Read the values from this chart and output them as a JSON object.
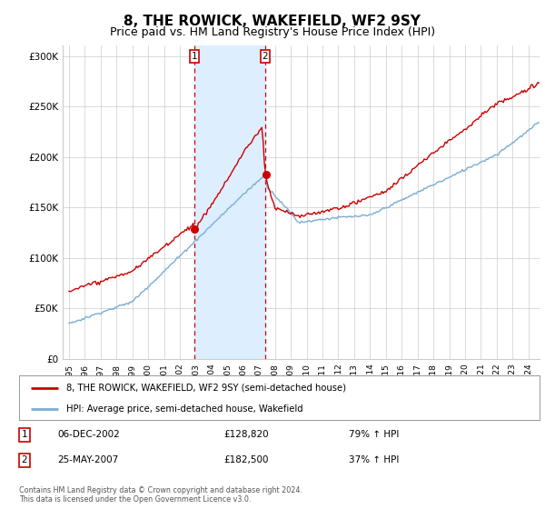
{
  "title": "8, THE ROWICK, WAKEFIELD, WF2 9SY",
  "subtitle": "Price paid vs. HM Land Registry's House Price Index (HPI)",
  "title_fontsize": 11,
  "subtitle_fontsize": 9,
  "ylabel_ticks": [
    "£0",
    "£50K",
    "£100K",
    "£150K",
    "£200K",
    "£250K",
    "£300K"
  ],
  "ytick_values": [
    0,
    50000,
    100000,
    150000,
    200000,
    250000,
    300000
  ],
  "ylim": [
    0,
    310000
  ],
  "sale1_date_num": 2002.92,
  "sale1_price": 128820,
  "sale2_date_num": 2007.38,
  "sale2_price": 182500,
  "sale1_label": "06-DEC-2002",
  "sale1_amount": "£128,820",
  "sale1_hpi": "79% ↑ HPI",
  "sale2_label": "25-MAY-2007",
  "sale2_amount": "£182,500",
  "sale2_hpi": "37% ↑ HPI",
  "legend_line1": "8, THE ROWICK, WAKEFIELD, WF2 9SY (semi-detached house)",
  "legend_line2": "HPI: Average price, semi-detached house, Wakefield",
  "footnote": "Contains HM Land Registry data © Crown copyright and database right 2024.\nThis data is licensed under the Open Government Licence v3.0.",
  "line_color_red": "#cc0000",
  "line_color_blue": "#7aadd4",
  "shade_color": "#ddeeff",
  "marker_color_red": "#cc0000",
  "vline_color": "#cc0000",
  "grid_color": "#cccccc",
  "background_color": "#ffffff"
}
